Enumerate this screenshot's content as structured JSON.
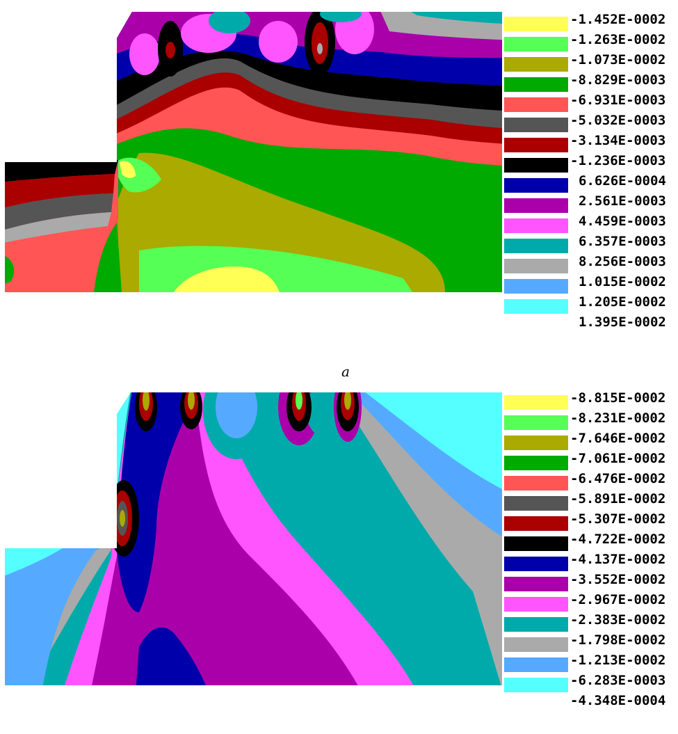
{
  "chart_data": [
    {
      "type": "heatmap",
      "panel_label": "a",
      "legend_placement": "right",
      "legend_colors": [
        "#ffff55",
        "#55ff55",
        "#aaaa00",
        "#00aa00",
        "#ff5555",
        "#555555",
        "#aa0000",
        "#000000",
        "#0000aa",
        "#aa00aa",
        "#ff55ff",
        "#00aaaa",
        "#aaaaaa",
        "#55aaff",
        "#55ffff"
      ],
      "legend_ticks": [
        "-1.452E-0002",
        "-1.263E-0002",
        "-1.073E-0002",
        "-8.829E-0003",
        "-6.931E-0003",
        "-5.032E-0003",
        "-3.134E-0003",
        "-1.236E-0003",
        "6.626E-0004",
        "2.561E-0003",
        "4.459E-0003",
        "6.357E-0003",
        "8.256E-0003",
        "1.015E-0002",
        "1.205E-0002",
        "1.395E-0002"
      ]
    },
    {
      "type": "heatmap",
      "panel_label": "",
      "legend_placement": "right",
      "legend_colors": [
        "#ffff55",
        "#55ff55",
        "#aaaa00",
        "#00aa00",
        "#ff5555",
        "#555555",
        "#aa0000",
        "#000000",
        "#0000aa",
        "#aa00aa",
        "#ff55ff",
        "#00aaaa",
        "#aaaaaa",
        "#55aaff",
        "#55ffff"
      ],
      "legend_ticks": [
        "-8.815E-0002",
        "-8.231E-0002",
        "-7.646E-0002",
        "-7.061E-0002",
        "-6.476E-0002",
        "-5.891E-0002",
        "-5.307E-0002",
        "-4.722E-0002",
        "-4.137E-0002",
        "-3.552E-0002",
        "-2.967E-0002",
        "-2.383E-0002",
        "-1.798E-0002",
        "-1.213E-0002",
        "-6.283E-0003",
        "-4.348E-0004"
      ]
    }
  ]
}
